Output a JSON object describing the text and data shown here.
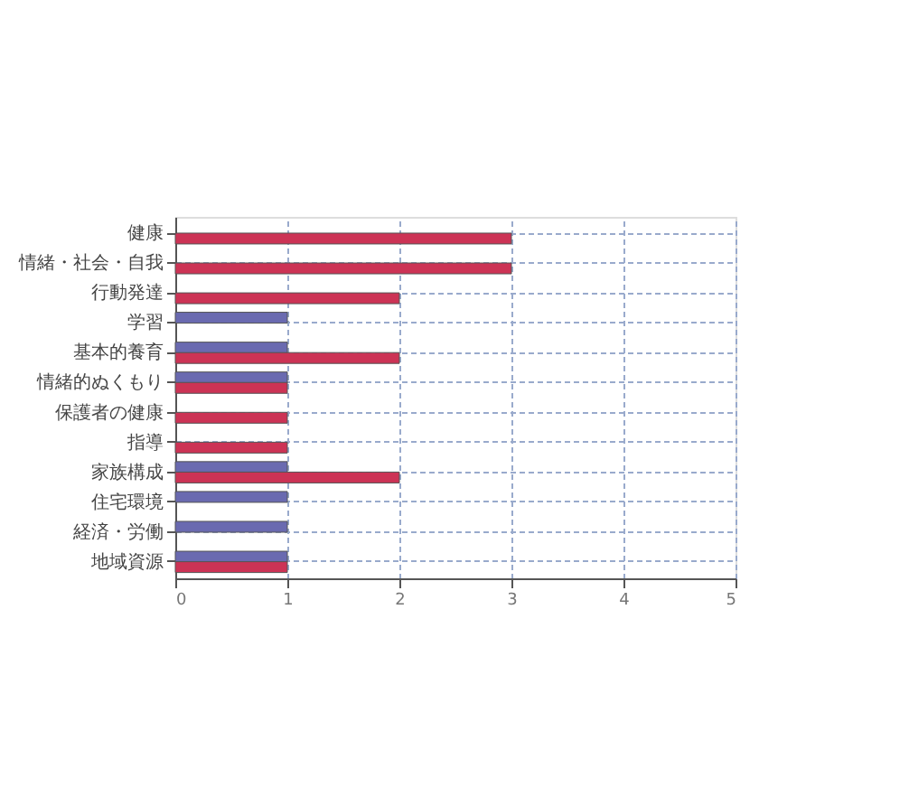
{
  "chart_data": {
    "type": "bar",
    "orientation": "horizontal",
    "categories": [
      "健康",
      "情緒・社会・自我",
      "行動発達",
      "学習",
      "基本的養育",
      "情緒的ぬくもり",
      "保護者の健康",
      "指導",
      "家族構成",
      "住宅環境",
      "経済・労働",
      "地域資源"
    ],
    "series": [
      {
        "color": "#6a6ab0",
        "values": [
          0,
          0,
          0,
          1,
          1,
          1,
          0,
          0,
          1,
          1,
          1,
          1
        ]
      },
      {
        "color": "#cc3355",
        "values": [
          3,
          3,
          2,
          0,
          2,
          1,
          1,
          1,
          2,
          0,
          0,
          1
        ]
      }
    ],
    "xlim": [
      0,
      5
    ],
    "xticks": [
      0,
      1,
      2,
      3,
      4,
      5
    ],
    "grid": true,
    "legend": false
  }
}
